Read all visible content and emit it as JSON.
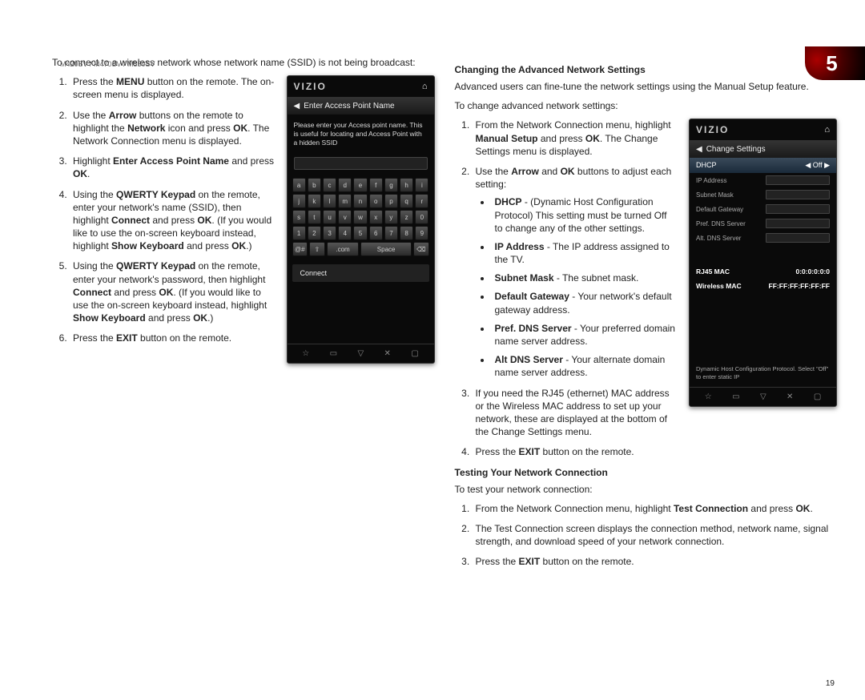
{
  "header": {
    "model": "M420SV / M470SV / M550SV",
    "chapter": "5",
    "page": "19"
  },
  "left": {
    "intro": "To connect to a wireless network whose network name (SSID) is not being broadcast:",
    "steps": [
      "Press the <b>MENU</b> button on the remote. The on-screen menu is displayed.",
      "Use the <b>Arrow</b> buttons on the remote to highlight the <b>Network</b> icon and press <b>OK</b>. The Network Connection menu is displayed.",
      "Highlight <b>Enter Access Point Name</b> and press <b>OK</b>.",
      "Using the <b>QWERTY Keypad</b> on the remote, enter your network's name (SSID), then highlight <b>Connect</b> and press <b>OK</b>. (If you would like to use the on-screen keyboard instead, highlight <b>Show Keyboard</b> and press <b>OK</b>.)",
      "Using the <b>QWERTY Keypad</b> on the remote, enter your network's password, then highlight <b>Connect</b> and press <b>OK</b>. (If you would like to use the on-screen keyboard instead, highlight <b>Show Keyboard</b> and press <b>OK</b>.)",
      "Press the <b>EXIT</b> button on the remote."
    ]
  },
  "right": {
    "h1": "Changing the Advanced Network Settings",
    "p1": "Advanced users can fine-tune the network settings using the Manual Setup feature.",
    "p2": "To change advanced network settings:",
    "step1": "From the Network Connection menu, highlight <b>Manual Setup</b> and press <b>OK</b>. The Change Settings menu is displayed.",
    "step2": "Use the <b>Arrow</b> and <b>OK</b> buttons to adjust each setting:",
    "bullets": [
      "<b>DHCP</b> - (Dynamic Host Configuration Protocol) This setting must be turned Off to change any of the other settings.",
      "<b>IP Address</b> - The IP address assigned to the TV.",
      "<b>Subnet Mask</b> - The subnet mask.",
      "<b>Default Gateway</b> - Your network's default gateway address.",
      "<b>Pref. DNS Server</b> - Your preferred domain name server address.",
      "<b>Alt DNS Server</b> - Your alternate domain name server address."
    ],
    "step3": "If you need the RJ45 (ethernet) MAC address or the Wireless MAC address to set up your network, these are displayed at the bottom of the Change Settings menu.",
    "step4": "Press the <b>EXIT</b> button on the remote.",
    "h2": "Testing Your Network Connection",
    "p3": "To test your network connection:",
    "test": [
      "From the Network Connection menu, highlight <b>Test Connection</b> and press <b>OK</b>.",
      "The Test Connection screen displays the connection method, network name, signal strength, and download speed of your network connection.",
      "Press the <b>EXIT</b> button on the remote."
    ]
  },
  "screen1": {
    "logo": "VIZIO",
    "title": "Enter Access Point Name",
    "instruction": "Please enter your Access point name. This is useful for locating and Access Point with a hidden SSID",
    "row1": [
      "a",
      "b",
      "c",
      "d",
      "e",
      "f",
      "g",
      "h",
      "i"
    ],
    "row2": [
      "j",
      "k",
      "l",
      "m",
      "n",
      "o",
      "p",
      "q",
      "r"
    ],
    "row3": [
      "s",
      "t",
      "u",
      "v",
      "w",
      "x",
      "y",
      "z",
      "0"
    ],
    "row4": [
      "1",
      "2",
      "3",
      "4",
      "5",
      "6",
      "7",
      "8",
      "9"
    ],
    "row5_at": "@#",
    "row5_shift": "⇧",
    "row5_com": ".com",
    "row5_space": "Space",
    "row5_back": "⌫",
    "connect": "Connect",
    "footer": [
      "☆",
      "▭",
      "▽",
      "✕",
      "▢"
    ]
  },
  "screen2": {
    "logo": "VIZIO",
    "title": "Change Settings",
    "dhcp_label": "DHCP",
    "dhcp_value": "◀ Off ▶",
    "fields": [
      "IP Address",
      "Subnet Mask",
      "Default Gateway",
      "Pref. DNS Server",
      "Alt. DNS Server"
    ],
    "rj45_label": "RJ45 MAC",
    "rj45_value": "0:0:0:0:0:0",
    "wireless_label": "Wireless MAC",
    "wireless_value": "FF:FF:FF:FF:FF:FF",
    "help": "Dynamic Host Configuration Protocol. Select \"Off\" to enter static IP",
    "footer": [
      "☆",
      "▭",
      "▽",
      "✕",
      "▢"
    ]
  }
}
